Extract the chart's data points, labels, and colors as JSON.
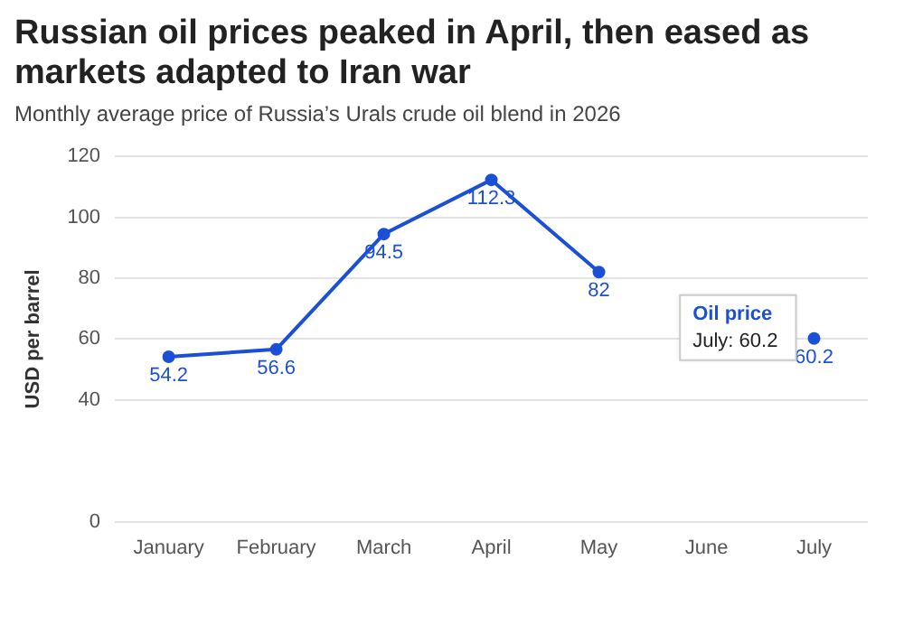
{
  "chart_data": {
    "type": "line",
    "title": "Russian oil prices peaked in April, then eased as markets adapted to Iran war",
    "subtitle": "Monthly average price of Russia’s Urals crude oil blend in 2026",
    "ylabel": "USD per barrel",
    "categories": [
      "January",
      "February",
      "March",
      "April",
      "May",
      "June",
      "July"
    ],
    "series": [
      {
        "name": "Oil price",
        "color": "#1a4fd6",
        "values": [
          54.2,
          56.6,
          94.5,
          112.3,
          82,
          null,
          60.2
        ]
      }
    ],
    "ylim": [
      0,
      120
    ],
    "yticks": [
      0,
      40,
      60,
      80,
      100,
      120
    ],
    "grid": "y",
    "marker": "circle",
    "line_style": "solid",
    "data_labels": true,
    "legend": false,
    "annotations": [
      "July: 60.2"
    ]
  }
}
